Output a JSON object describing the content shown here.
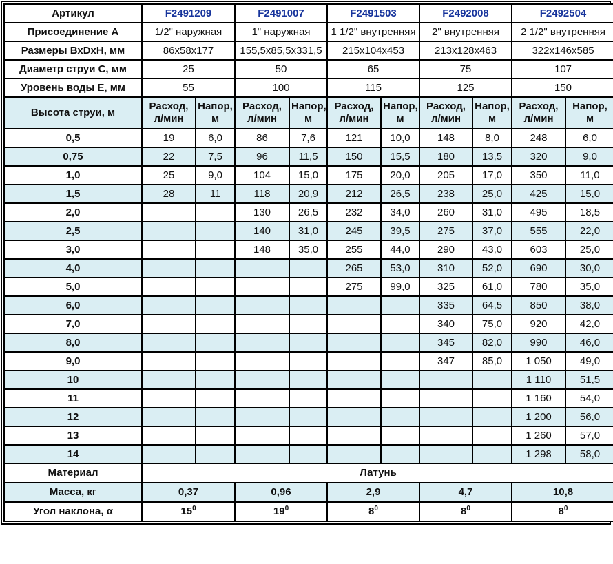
{
  "colors": {
    "band": "#daeef3",
    "article_text": "#17349c",
    "border": "#000000",
    "text": "#111111"
  },
  "spec_rows": [
    {
      "label": "Артикул",
      "kind": "article",
      "values": [
        "F2491209",
        "F2491007",
        "F2491503",
        "F2492008",
        "F2492504"
      ]
    },
    {
      "label": "Присоединение А",
      "kind": "value",
      "values": [
        "1/2\" наружная",
        "1\" наружная",
        "1 1/2\" внутренняя",
        "2\" внутренняя",
        "2 1/2\" внутренняя"
      ]
    },
    {
      "label": "Размеры ВхDхН, мм",
      "kind": "value",
      "values": [
        "86х58х177",
        "155,5х85,5х331,5",
        "215х104х453",
        "213х128х463",
        "322х146х585"
      ]
    },
    {
      "label": "Диаметр струи С, мм",
      "kind": "value",
      "values": [
        "25",
        "50",
        "65",
        "75",
        "107"
      ]
    },
    {
      "label": "Уровень воды Е, мм",
      "kind": "value",
      "values": [
        "55",
        "100",
        "115",
        "125",
        "150"
      ]
    }
  ],
  "jet_table": {
    "corner_label": "Высота струи, м",
    "col_flow": "Расход, л/мин",
    "col_head": "Напор, м",
    "rows": [
      {
        "h": "0,5",
        "cells": [
          "19",
          "6,0",
          "86",
          "7,6",
          "121",
          "10,0",
          "148",
          "8,0",
          "248",
          "6,0"
        ]
      },
      {
        "h": "0,75",
        "cells": [
          "22",
          "7,5",
          "96",
          "11,5",
          "150",
          "15,5",
          "180",
          "13,5",
          "320",
          "9,0"
        ]
      },
      {
        "h": "1,0",
        "cells": [
          "25",
          "9,0",
          "104",
          "15,0",
          "175",
          "20,0",
          "205",
          "17,0",
          "350",
          "11,0"
        ]
      },
      {
        "h": "1,5",
        "cells": [
          "28",
          "11",
          "118",
          "20,9",
          "212",
          "26,5",
          "238",
          "25,0",
          "425",
          "15,0"
        ]
      },
      {
        "h": "2,0",
        "cells": [
          "",
          "",
          "130",
          "26,5",
          "232",
          "34,0",
          "260",
          "31,0",
          "495",
          "18,5"
        ]
      },
      {
        "h": "2,5",
        "cells": [
          "",
          "",
          "140",
          "31,0",
          "245",
          "39,5",
          "275",
          "37,0",
          "555",
          "22,0"
        ]
      },
      {
        "h": "3,0",
        "cells": [
          "",
          "",
          "148",
          "35,0",
          "255",
          "44,0",
          "290",
          "43,0",
          "603",
          "25,0"
        ]
      },
      {
        "h": "4,0",
        "cells": [
          "",
          "",
          "",
          "",
          "265",
          "53,0",
          "310",
          "52,0",
          "690",
          "30,0"
        ]
      },
      {
        "h": "5,0",
        "cells": [
          "",
          "",
          "",
          "",
          "275",
          "99,0",
          "325",
          "61,0",
          "780",
          "35,0"
        ]
      },
      {
        "h": "6,0",
        "cells": [
          "",
          "",
          "",
          "",
          "",
          "",
          "335",
          "64,5",
          "850",
          "38,0"
        ]
      },
      {
        "h": "7,0",
        "cells": [
          "",
          "",
          "",
          "",
          "",
          "",
          "340",
          "75,0",
          "920",
          "42,0"
        ]
      },
      {
        "h": "8,0",
        "cells": [
          "",
          "",
          "",
          "",
          "",
          "",
          "345",
          "82,0",
          "990",
          "46,0"
        ]
      },
      {
        "h": "9,0",
        "cells": [
          "",
          "",
          "",
          "",
          "",
          "",
          "347",
          "85,0",
          "1 050",
          "49,0"
        ]
      },
      {
        "h": "10",
        "cells": [
          "",
          "",
          "",
          "",
          "",
          "",
          "",
          "",
          "1 110",
          "51,5"
        ]
      },
      {
        "h": "11",
        "cells": [
          "",
          "",
          "",
          "",
          "",
          "",
          "",
          "",
          "1 160",
          "54,0"
        ]
      },
      {
        "h": "12",
        "cells": [
          "",
          "",
          "",
          "",
          "",
          "",
          "",
          "",
          "1 200",
          "56,0"
        ]
      },
      {
        "h": "13",
        "cells": [
          "",
          "",
          "",
          "",
          "",
          "",
          "",
          "",
          "1 260",
          "57,0"
        ]
      },
      {
        "h": "14",
        "cells": [
          "",
          "",
          "",
          "",
          "",
          "",
          "",
          "",
          "1 298",
          "58,0"
        ]
      }
    ]
  },
  "material": {
    "label": "Материал",
    "value": "Латунь"
  },
  "mass": {
    "label": "Масса, кг",
    "values": [
      "0,37",
      "0,96",
      "2,9",
      "4,7",
      "10,8"
    ]
  },
  "angle": {
    "label": "Угол наклона, α",
    "values": [
      "15",
      "19",
      "8",
      "8",
      "8"
    ],
    "sup": "0"
  }
}
